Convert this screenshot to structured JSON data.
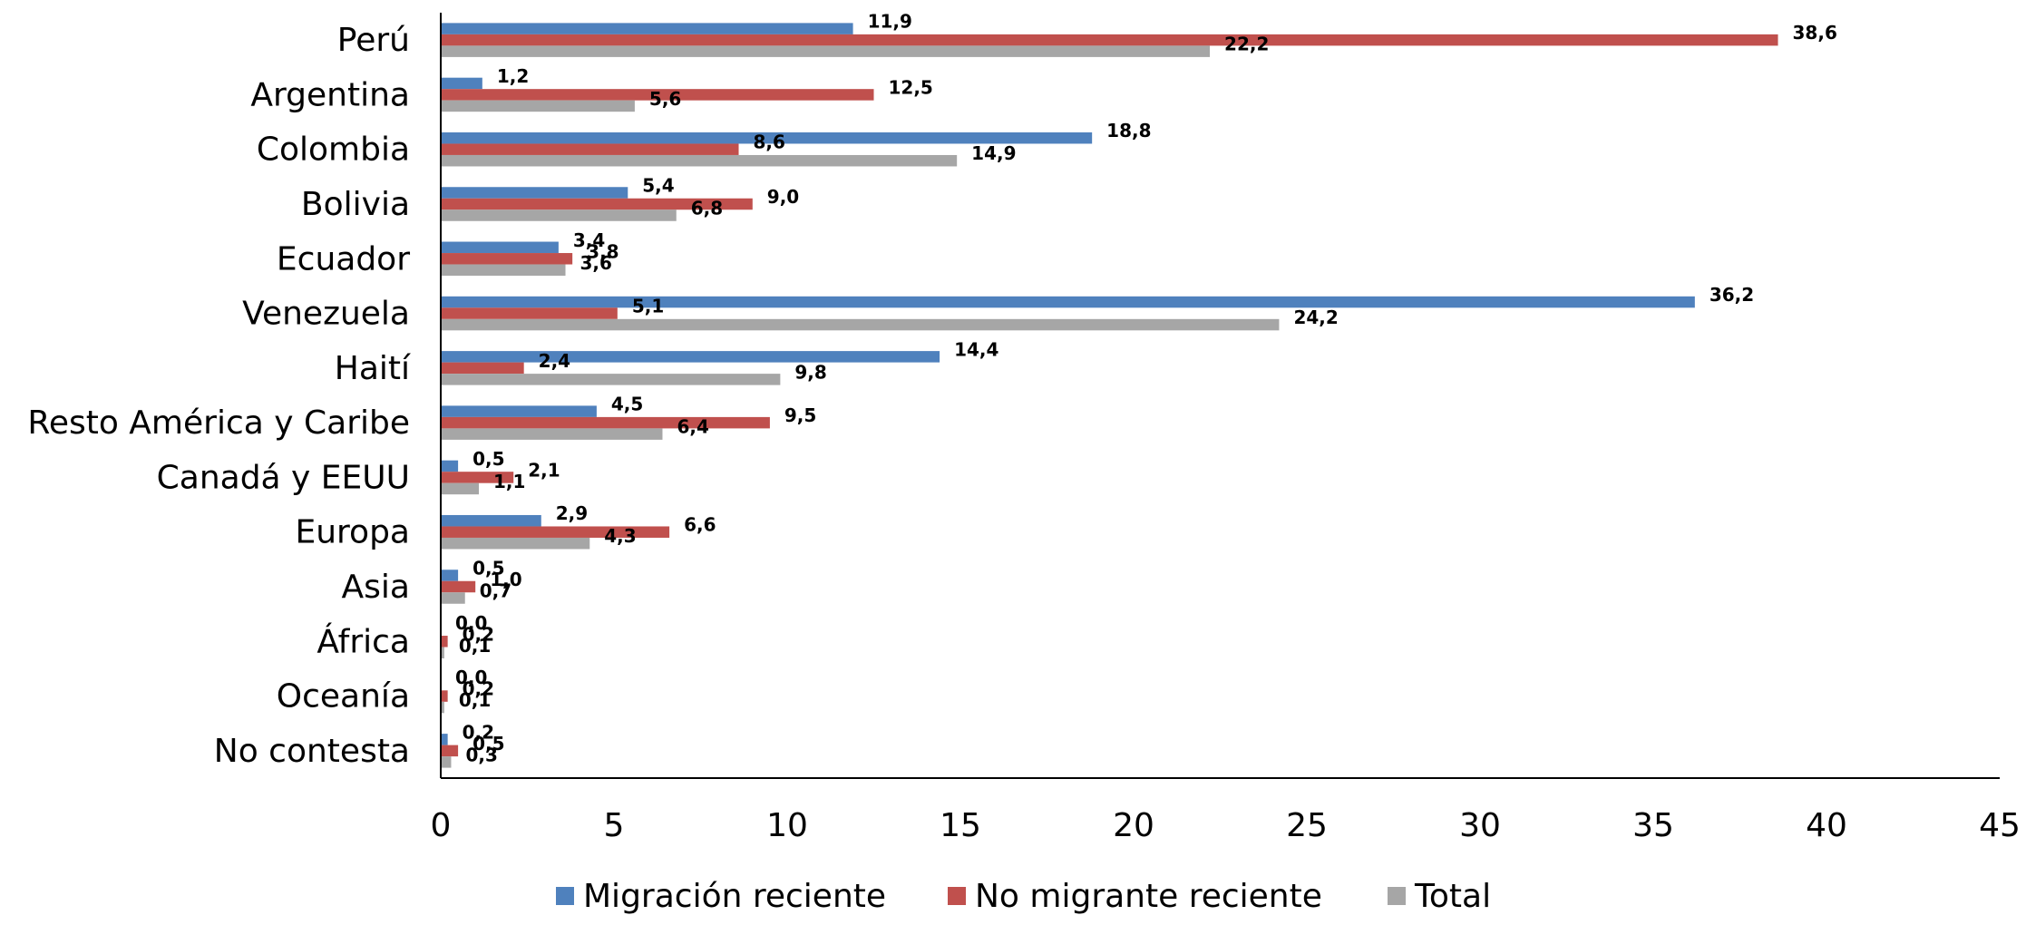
{
  "chart_data": {
    "type": "bar",
    "orientation": "horizontal",
    "title": "",
    "xlabel": "",
    "ylabel": "",
    "categories": [
      "Perú",
      "Argentina",
      "Colombia",
      "Bolivia",
      "Ecuador",
      "Venezuela",
      "Haití",
      "Resto América y Caribe",
      "Canadá y EEUU",
      "Europa",
      "Asia",
      "África",
      "Oceanía",
      "No contesta"
    ],
    "series": [
      {
        "name": "Migración reciente",
        "color": "#4f81bd",
        "values": [
          11.9,
          1.2,
          18.8,
          5.4,
          3.4,
          36.2,
          14.4,
          4.5,
          0.5,
          2.9,
          0.5,
          0.0,
          0.0,
          0.2
        ],
        "labels": [
          "11,9",
          "1,2",
          "18,8",
          "5,4",
          "3,4",
          "36,2",
          "14,4",
          "4,5",
          "0,5",
          "2,9",
          "0,5",
          "0,0",
          "0,0",
          "0,2"
        ]
      },
      {
        "name": "No migrante reciente",
        "color": "#c0504d",
        "values": [
          38.6,
          12.5,
          8.6,
          9.0,
          3.8,
          5.1,
          2.4,
          9.5,
          2.1,
          6.6,
          1.0,
          0.2,
          0.2,
          0.5
        ],
        "labels": [
          "38,6",
          "12,5",
          "8,6",
          "9,0",
          "3,8",
          "5,1",
          "2,4",
          "9,5",
          "2,1",
          "6,6",
          "1,0",
          "0,2",
          "0,2",
          "0,5"
        ]
      },
      {
        "name": "Total",
        "color": "#a6a6a6",
        "values": [
          22.2,
          5.6,
          14.9,
          6.8,
          3.6,
          24.2,
          9.8,
          6.4,
          1.1,
          4.3,
          0.7,
          0.1,
          0.1,
          0.3
        ],
        "labels": [
          "22,2",
          "5,6",
          "14,9",
          "6,8",
          "3,6",
          "24,2",
          "9,8",
          "6,4",
          "1,1",
          "4,3",
          "0,7",
          "0,1",
          "0,1",
          "0,3"
        ]
      }
    ],
    "xlim": [
      0,
      45
    ],
    "xticks": [
      0,
      5,
      10,
      15,
      20,
      25,
      30,
      35,
      40,
      45
    ],
    "xtick_labels": [
      "0",
      "5",
      "10",
      "15",
      "20",
      "25",
      "30",
      "35",
      "40",
      "45"
    ],
    "grid": false,
    "legend_position": "bottom",
    "legend": [
      "Migración reciente",
      "No migrante reciente",
      "Total"
    ]
  }
}
